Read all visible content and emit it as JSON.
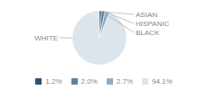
{
  "chart_data": {
    "type": "pie",
    "categories": [
      "WHITE",
      "ASIAN",
      "HISPANIC",
      "BLACK"
    ],
    "values": [
      94.1,
      2.7,
      2.0,
      1.2
    ],
    "value_labels": [
      "94.1%",
      "2.7%",
      "2.0%",
      "1.2%"
    ],
    "colors": [
      "#dce4ec",
      "#8fadbf",
      "#5b7f9e",
      "#2d506e"
    ],
    "legend": "bottom"
  }
}
